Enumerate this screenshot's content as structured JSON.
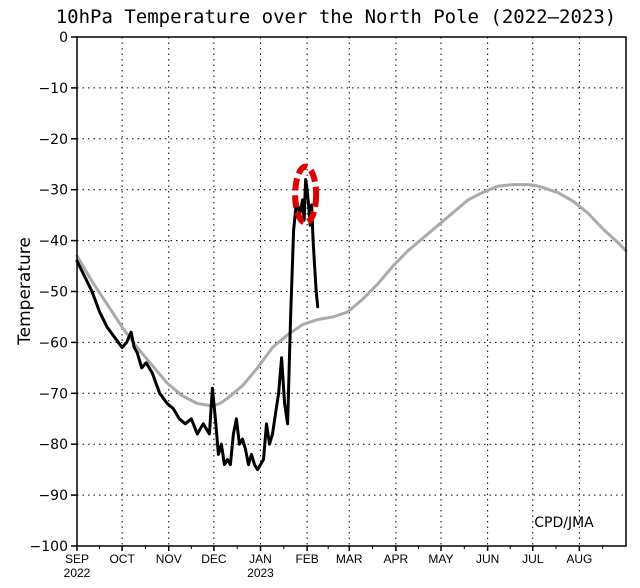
{
  "chart_data": {
    "type": "line",
    "title": "10hPa Temperature over the North Pole (2022–2023)",
    "ylabel": "Temperature",
    "xlabel": "",
    "credit": "CPD/JMA",
    "x_unit": "days since Sep 1",
    "xlim": [
      0,
      365
    ],
    "ylim": [
      -100,
      0
    ],
    "yticks": [
      0,
      -10,
      -20,
      -30,
      -40,
      -50,
      -60,
      -70,
      -80,
      -90,
      -100
    ],
    "ytick_labels": [
      "0",
      "−10",
      "−20",
      "−30",
      "−40",
      "−50",
      "−60",
      "−70",
      "−80",
      "−90",
      "−100"
    ],
    "xticks": [
      {
        "day": 0,
        "label": "SEP",
        "year": "2022"
      },
      {
        "day": 30,
        "label": "OCT"
      },
      {
        "day": 61,
        "label": "NOV"
      },
      {
        "day": 91,
        "label": "DEC"
      },
      {
        "day": 122,
        "label": "JAN",
        "year": "2023"
      },
      {
        "day": 153,
        "label": "FEB"
      },
      {
        "day": 181,
        "label": "MAR"
      },
      {
        "day": 212,
        "label": "APR"
      },
      {
        "day": 242,
        "label": "MAY"
      },
      {
        "day": 273,
        "label": "JUN"
      },
      {
        "day": 303,
        "label": "JUL"
      },
      {
        "day": 334,
        "label": "AUG"
      }
    ],
    "grid": true,
    "annotation": {
      "type": "ellipse",
      "color": "#dd0000",
      "x": 152,
      "y": -31,
      "rx": 7,
      "ry": 5.5,
      "dashed": true
    },
    "series": [
      {
        "role": "climatology",
        "color": "#aaaaaa",
        "width": 3,
        "x": [
          0,
          10,
          20,
          30,
          40,
          50,
          60,
          70,
          80,
          90,
          95,
          100,
          110,
          120,
          130,
          140,
          150,
          160,
          170,
          180,
          190,
          200,
          210,
          220,
          230,
          240,
          250,
          260,
          270,
          280,
          290,
          300,
          305,
          310,
          320,
          330,
          340,
          350,
          360,
          365
        ],
        "y": [
          -43,
          -48,
          -52.5,
          -57,
          -61,
          -64.5,
          -68,
          -70.5,
          -72,
          -72.5,
          -72,
          -71,
          -68.5,
          -65,
          -61,
          -58.5,
          -56.5,
          -55.5,
          -55,
          -54,
          -51.5,
          -48.5,
          -45,
          -42,
          -39.5,
          -37,
          -34.5,
          -32,
          -30.5,
          -29.3,
          -29,
          -29,
          -29.2,
          -29.6,
          -30.6,
          -32.3,
          -34.7,
          -37.8,
          -40.5,
          -42
        ]
      },
      {
        "role": "observed",
        "color": "#000000",
        "width": 3,
        "x": [
          0,
          5,
          10,
          15,
          20,
          25,
          30,
          33,
          36,
          38,
          40,
          43,
          46,
          50,
          55,
          60,
          64,
          68,
          72,
          76,
          80,
          84,
          88,
          90,
          92,
          94,
          96,
          98,
          100,
          102,
          104,
          106,
          108,
          110,
          112,
          114,
          116,
          118,
          120,
          122,
          124,
          126,
          128,
          130,
          132,
          134,
          136,
          138,
          140,
          142,
          144,
          146,
          148,
          150,
          151,
          152,
          153,
          154,
          155,
          156,
          157,
          158,
          159,
          160
        ],
        "y": [
          -44,
          -47,
          -50,
          -54,
          -57,
          -59,
          -61,
          -60,
          -58,
          -61,
          -62,
          -65,
          -64,
          -66,
          -70,
          -72,
          -73,
          -75,
          -76,
          -75,
          -78,
          -76,
          -78,
          -69,
          -75,
          -82,
          -80,
          -84,
          -83,
          -84,
          -78,
          -75,
          -80,
          -79,
          -81,
          -84,
          -82,
          -84,
          -85,
          -84,
          -83,
          -76,
          -80,
          -78,
          -74,
          -70,
          -63,
          -72,
          -76,
          -55,
          -38,
          -32,
          -35,
          -32,
          -36,
          -28,
          -30,
          -33,
          -37,
          -33,
          -40,
          -45,
          -50,
          -53
        ]
      }
    ]
  }
}
